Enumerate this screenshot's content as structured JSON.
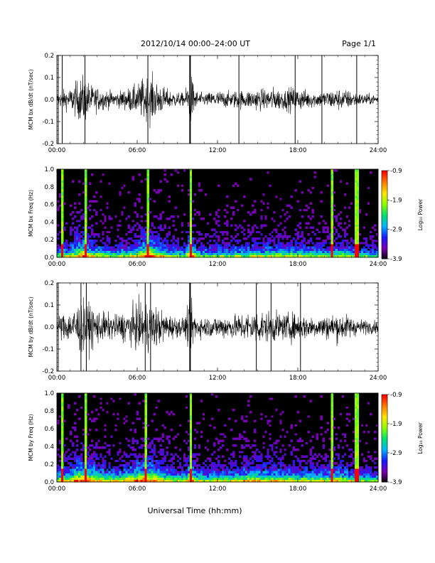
{
  "header": {
    "title": "2012/10/14  00:00–24:00 UT",
    "page": "Page 1/1"
  },
  "xlabel": "Universal Time (hh:mm)",
  "colorbar": {
    "label": "Log₁₀ Power",
    "ticks": [
      "-0.9",
      "-1.9",
      "-2.9",
      "-3.9"
    ],
    "range": [
      -3.9,
      -0.9
    ],
    "colors": [
      "#000000",
      "#7a00b0",
      "#1a1aff",
      "#00b4ff",
      "#00e070",
      "#8cff00",
      "#ffe400",
      "#ff7a00",
      "#ff0000"
    ]
  },
  "chart_data": [
    {
      "type": "line",
      "ylabel": "MCM bx dB/dt (nT/sec)",
      "xlim": [
        0,
        24
      ],
      "ylim": [
        -0.2,
        0.2
      ],
      "x_ticks": [
        "00:00",
        "06:00",
        "12:00",
        "18:00",
        "24:00"
      ],
      "y_ticks": [
        "0.2",
        "0.1",
        "0.0",
        "-0.1",
        "-0.2"
      ],
      "series": [
        {
          "x": [
            0,
            0.5,
            1,
            1.5,
            2,
            2.5,
            3,
            3.5,
            4,
            4.5,
            5,
            5.5,
            6,
            6.5,
            7,
            7.5,
            8,
            8.5,
            9,
            9.5,
            10,
            10.5,
            11,
            11.5,
            12,
            12.5,
            13,
            13.5,
            14,
            14.5,
            15,
            15.5,
            16,
            16.5,
            17,
            17.5,
            18,
            18.5,
            19,
            19.5,
            20,
            20.5,
            21,
            21.5,
            22,
            22.5,
            23,
            23.5,
            24
          ],
          "amplitude": [
            0.05,
            0.08,
            0.09,
            0.15,
            0.2,
            0.12,
            0.1,
            0.08,
            0.07,
            0.06,
            0.08,
            0.1,
            0.12,
            0.18,
            0.2,
            0.14,
            0.1,
            0.07,
            0.06,
            0.05,
            0.2,
            0.06,
            0.05,
            0.06,
            0.07,
            0.07,
            0.06,
            0.08,
            0.07,
            0.08,
            0.09,
            0.08,
            0.1,
            0.09,
            0.08,
            0.1,
            0.09,
            0.08,
            0.07,
            0.06,
            0.07,
            0.08,
            0.09,
            0.08,
            0.07,
            0.05,
            0.05,
            0.04,
            0.04
          ]
        }
      ],
      "spikes": [
        0.1,
        0.4,
        2.1,
        6.8,
        9.95,
        13.6,
        17.8,
        19.8,
        22.4
      ]
    },
    {
      "type": "heatmap",
      "ylabel": "MCM bx Freq (Hz)",
      "xlim": [
        0,
        24
      ],
      "ylim": [
        0.0,
        1.0
      ],
      "x_ticks": [
        "00:00",
        "06:00",
        "12:00",
        "18:00",
        "24:00"
      ],
      "y_ticks": [
        "1.0",
        "0.8",
        "0.6",
        "0.4",
        "0.2",
        "0.0"
      ],
      "power_range": [
        -3.9,
        -0.9
      ],
      "vertical_features_hours": [
        0.35,
        2.1,
        6.8,
        9.95,
        20.6,
        22.4
      ]
    },
    {
      "type": "line",
      "ylabel": "MCM by dB/dt (nT/sec)",
      "xlim": [
        0,
        24
      ],
      "ylim": [
        -0.2,
        0.2
      ],
      "x_ticks": [
        "00:00",
        "06:00",
        "12:00",
        "18:00",
        "24:00"
      ],
      "y_ticks": [
        "0.2",
        "0.1",
        "0.0",
        "-0.1",
        "-0.2"
      ],
      "series": [
        {
          "x": [
            0,
            0.5,
            1,
            1.5,
            2,
            2.5,
            3,
            3.5,
            4,
            4.5,
            5,
            5.5,
            6,
            6.5,
            7,
            7.5,
            8,
            8.5,
            9,
            9.5,
            10,
            10.5,
            11,
            11.5,
            12,
            12.5,
            13,
            13.5,
            14,
            14.5,
            15,
            15.5,
            16,
            16.5,
            17,
            17.5,
            18,
            18.5,
            19,
            19.5,
            20,
            20.5,
            21,
            21.5,
            22,
            22.5,
            23,
            23.5,
            24
          ],
          "amplitude": [
            0.08,
            0.12,
            0.12,
            0.2,
            0.2,
            0.18,
            0.14,
            0.12,
            0.1,
            0.1,
            0.12,
            0.15,
            0.18,
            0.2,
            0.2,
            0.16,
            0.12,
            0.1,
            0.08,
            0.08,
            0.2,
            0.09,
            0.08,
            0.08,
            0.09,
            0.1,
            0.09,
            0.1,
            0.12,
            0.12,
            0.14,
            0.12,
            0.12,
            0.12,
            0.1,
            0.12,
            0.1,
            0.1,
            0.09,
            0.08,
            0.1,
            0.1,
            0.12,
            0.1,
            0.09,
            0.06,
            0.06,
            0.05,
            0.05
          ]
        }
      ],
      "spikes": [
        0.1,
        1.8,
        2.2,
        6.6,
        7.0,
        9.95,
        14.9,
        16.0,
        18.2
      ]
    },
    {
      "type": "heatmap",
      "ylabel": "MCM by Freq (Hz)",
      "xlim": [
        0,
        24
      ],
      "ylim": [
        0.0,
        1.0
      ],
      "x_ticks": [
        "00:00",
        "06:00",
        "12:00",
        "18:00",
        "24:00"
      ],
      "y_ticks": [
        "1.0",
        "0.8",
        "0.6",
        "0.4",
        "0.2",
        "0.0"
      ],
      "power_range": [
        -3.9,
        -0.9
      ],
      "vertical_features_hours": [
        0.35,
        2.1,
        6.6,
        9.95,
        20.6,
        22.4
      ]
    }
  ]
}
